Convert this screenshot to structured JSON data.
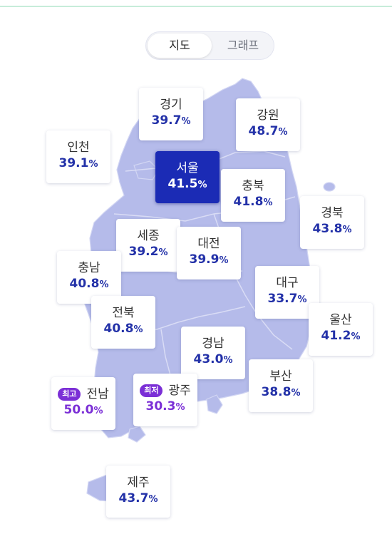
{
  "toggle": {
    "map_label": "지도",
    "graph_label": "그래프"
  },
  "colors": {
    "map_fill": "#b5bbea",
    "accent": "#1b2bb5",
    "value": "#2331a8",
    "highlight": "#7b2fd6"
  },
  "regions": {
    "gyeonggi": {
      "name": "경기",
      "value": "39.7",
      "unit": "%"
    },
    "gangwon": {
      "name": "강원",
      "value": "48.7",
      "unit": "%"
    },
    "incheon": {
      "name": "인천",
      "value": "39.1",
      "unit": "%"
    },
    "seoul": {
      "name": "서울",
      "value": "41.5",
      "unit": "%"
    },
    "chungbuk": {
      "name": "충북",
      "value": "41.8",
      "unit": "%"
    },
    "gyeongbuk": {
      "name": "경북",
      "value": "43.8",
      "unit": "%"
    },
    "sejong": {
      "name": "세종",
      "value": "39.2",
      "unit": "%"
    },
    "daejeon": {
      "name": "대전",
      "value": "39.9",
      "unit": "%"
    },
    "chungnam": {
      "name": "충남",
      "value": "40.8",
      "unit": "%"
    },
    "daegu": {
      "name": "대구",
      "value": "33.7",
      "unit": "%"
    },
    "jeonbuk": {
      "name": "전북",
      "value": "40.8",
      "unit": "%"
    },
    "ulsan": {
      "name": "울산",
      "value": "41.2",
      "unit": "%"
    },
    "gyeongnam": {
      "name": "경남",
      "value": "43.0",
      "unit": "%"
    },
    "busan": {
      "name": "부산",
      "value": "38.8",
      "unit": "%"
    },
    "jeonnam": {
      "name": "전남",
      "value": "50.0",
      "unit": "%",
      "badge": "최고"
    },
    "gwangju": {
      "name": "광주",
      "value": "30.3",
      "unit": "%",
      "badge": "최저"
    },
    "jeju": {
      "name": "제주",
      "value": "43.7",
      "unit": "%"
    }
  }
}
